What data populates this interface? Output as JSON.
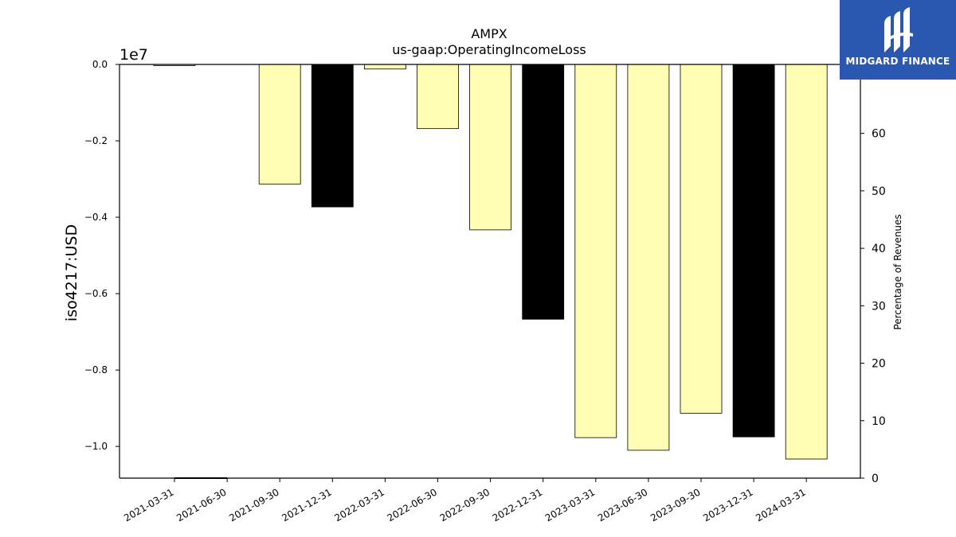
{
  "chart_data": {
    "type": "bar",
    "title": "AMPX",
    "subtitle": "us-gaap:OperatingIncomeLoss",
    "ylabel": "iso4217:USD",
    "y_offset_label": "1e7",
    "y2label": "Percentage of Revenues",
    "categories": [
      "2021-03-31",
      "2021-06-30",
      "2021-09-30",
      "2021-12-31",
      "2022-03-31",
      "2022-06-30",
      "2022-09-30",
      "2022-12-31",
      "2023-03-31",
      "2023-06-30",
      "2023-09-30",
      "2023-12-31",
      "2024-03-31"
    ],
    "values": [
      -0.003,
      null,
      -0.313,
      -0.373,
      -0.012,
      -0.168,
      -0.433,
      -0.667,
      -0.977,
      -1.01,
      -0.913,
      -0.975,
      -1.033
    ],
    "colors": [
      "#fffdb4",
      "#fffdb4",
      "#fffdb4",
      "#000000",
      "#fffdb4",
      "#fffdb4",
      "#fffdb4",
      "#000000",
      "#fffdb4",
      "#fffdb4",
      "#fffdb4",
      "#000000",
      "#fffdb4"
    ],
    "ylim": [
      -1.083,
      0.0
    ],
    "yticks": [
      0.0,
      -0.2,
      -0.4,
      -0.6,
      -0.8,
      -1.0
    ],
    "ytick_labels": [
      "0.0",
      "−0.2",
      "−0.4",
      "−0.6",
      "−0.8",
      "−1.0"
    ],
    "y2lim": [
      0,
      72
    ],
    "y2ticks": [
      0,
      10,
      20,
      30,
      40,
      50,
      60
    ],
    "y2tick_labels": [
      "0",
      "10",
      "20",
      "30",
      "40",
      "50",
      "60"
    ],
    "line_series": {
      "values": [
        0,
        0
      ]
    },
    "grid": false,
    "legend": "none"
  },
  "logo": {
    "text": "MIDGARD FINANCE"
  }
}
